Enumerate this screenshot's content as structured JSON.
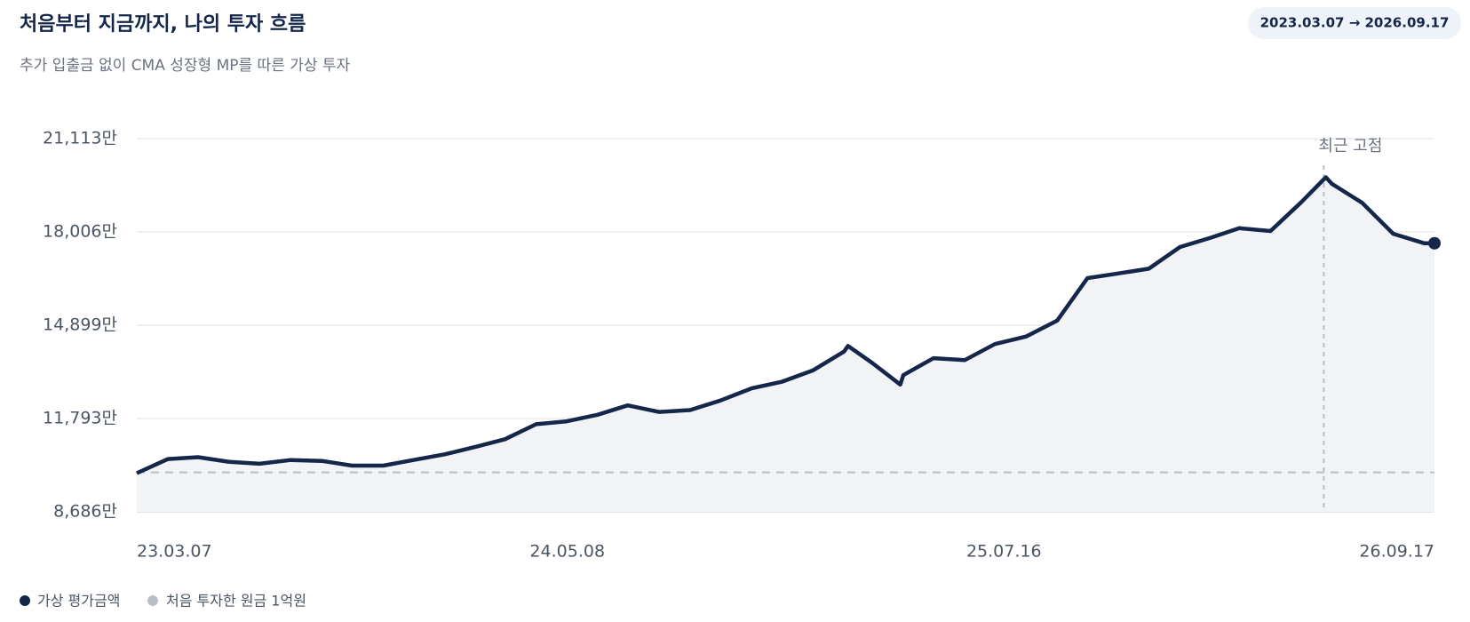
{
  "chart_data": {
    "type": "line",
    "title": "처음부터 지금까지, 나의 투자 흐름",
    "subtitle": "추가 입출금 없이 CMA 성장형 MP를 따른 가상 투자",
    "period": "2023.03.07 → 2026.09.17",
    "x": [
      "2023-03-07",
      "2023-04-07",
      "2023-05-07",
      "2023-06-07",
      "2023-07-07",
      "2023-08-07",
      "2023-09-07",
      "2023-10-07",
      "2023-11-07",
      "2023-12-07",
      "2024-01-07",
      "2024-02-07",
      "2024-03-07",
      "2024-04-07",
      "2024-05-07",
      "2024-06-07",
      "2024-07-07",
      "2024-08-07",
      "2024-09-07",
      "2024-10-07",
      "2024-11-07",
      "2024-12-07",
      "2025-01-07",
      "2025-02-07",
      "2025-02-11",
      "2025-03-07",
      "2025-04-04",
      "2025-04-07",
      "2025-05-07",
      "2025-06-07",
      "2025-07-07",
      "2025-08-07",
      "2025-09-07",
      "2025-10-07",
      "2025-11-07",
      "2025-12-07",
      "2026-01-07",
      "2026-02-07",
      "2026-03-07",
      "2026-04-07",
      "2026-05-07",
      "2026-06-01",
      "2026-06-07",
      "2026-07-07",
      "2026-08-07",
      "2026-09-07",
      "2026-09-17"
    ],
    "series": [
      {
        "name": "가상 평가금액",
        "color": "#14264a",
        "values": [
          9973,
          10443,
          10506,
          10349,
          10286,
          10412,
          10380,
          10224,
          10224,
          10412,
          10600,
          10851,
          11102,
          11604,
          11698,
          11918,
          12232,
          12012,
          12075,
          12389,
          12797,
          13016,
          13393,
          14021,
          14209,
          13644,
          12922,
          13236,
          13801,
          13738,
          14272,
          14523,
          15056,
          16468,
          16625,
          16782,
          17504,
          17818,
          18131,
          18037,
          18978,
          19826,
          19606,
          18978,
          17943,
          17629,
          17629
        ]
      }
    ],
    "baseline": 10000,
    "baseline_label": "처음 투자한 원금 1억원",
    "baseline_color": "#b9bec8",
    "annotation": {
      "text": "최근 고점",
      "x": "2026-05-30"
    },
    "ylim": [
      8686,
      21113
    ],
    "yticks": [
      {
        "value": 8686,
        "label": "8,686만"
      },
      {
        "value": 11793,
        "label": "11,793만"
      },
      {
        "value": 14899,
        "label": "14,899만"
      },
      {
        "value": 18006,
        "label": "18,006만"
      },
      {
        "value": 21113,
        "label": "21,113만"
      }
    ],
    "xlim": [
      "2023-03-07",
      "2026-09-17"
    ],
    "xticks": [
      {
        "value": "2023-03-07",
        "label": "23.03.07"
      },
      {
        "value": "2024-05-08",
        "label": "24.05.08"
      },
      {
        "value": "2025-07-16",
        "label": "25.07.16"
      },
      {
        "value": "2026-09-17",
        "label": "26.09.17"
      }
    ],
    "grid": true
  }
}
